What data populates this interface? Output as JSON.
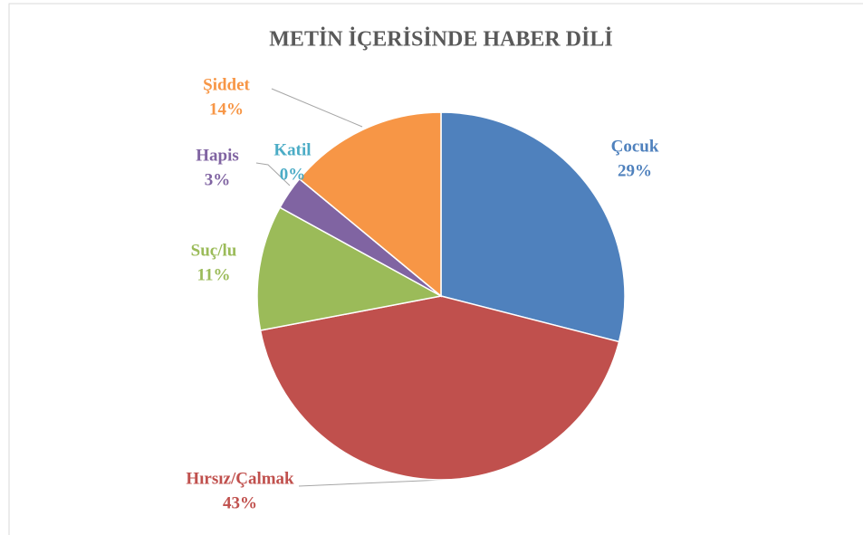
{
  "chart_data": {
    "type": "pie",
    "title": "METİN İÇERİSİNDE HABER DİLİ",
    "categories": [
      "Çocuk",
      "Hırsız/Çalmak",
      "Suç/lu",
      "Hapis",
      "Katil",
      "Şiddet"
    ],
    "values": [
      29,
      43,
      11,
      3,
      0,
      14
    ],
    "value_labels": [
      "29%",
      "43%",
      "11%",
      "3%",
      "0%",
      "14%"
    ],
    "colors": [
      "#4f81bd",
      "#c0504d",
      "#9bbb59",
      "#8064a2",
      "#4bacc6",
      "#f79646"
    ]
  }
}
